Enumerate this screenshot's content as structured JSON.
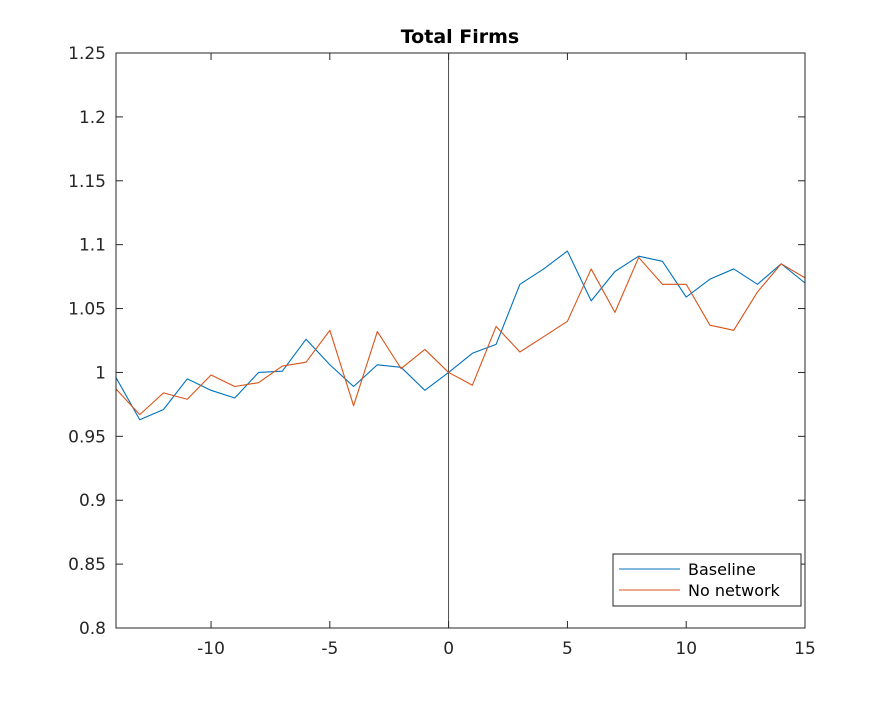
{
  "chart_data": {
    "type": "line",
    "title": "Total Firms",
    "xlabel": "",
    "ylabel": "",
    "xlim": [
      -14,
      15
    ],
    "ylim": [
      0.8,
      1.25
    ],
    "xticks": [
      -10,
      -5,
      0,
      5,
      10,
      15
    ],
    "xtick_labels": [
      "-10",
      "-5",
      "0",
      "5",
      "10",
      "15"
    ],
    "yticks": [
      0.8,
      0.85,
      0.9,
      0.95,
      1,
      1.05,
      1.1,
      1.15,
      1.2,
      1.25
    ],
    "ytick_labels": [
      "0.8",
      "0.85",
      "0.9",
      "0.95",
      "1",
      "1.05",
      "1.1",
      "1.15",
      "1.2",
      "1.25"
    ],
    "grid": false,
    "legend_position": "bottom-right",
    "reference_line_x": 0,
    "x": [
      -14,
      -13,
      -12,
      -11,
      -10,
      -9,
      -8,
      -7,
      -6,
      -5,
      -4,
      -3,
      -2,
      -1,
      0,
      1,
      2,
      3,
      4,
      5,
      6,
      7,
      8,
      9,
      10,
      11,
      12,
      13,
      14,
      15
    ],
    "series": [
      {
        "name": "Baseline",
        "color": "#0072BD",
        "values": [
          0.996,
          0.963,
          0.971,
          0.995,
          0.986,
          0.98,
          1.0,
          1.001,
          1.026,
          1.006,
          0.989,
          1.006,
          1.004,
          0.986,
          1.0,
          1.015,
          1.022,
          1.069,
          1.081,
          1.095,
          1.056,
          1.079,
          1.091,
          1.087,
          1.059,
          1.073,
          1.081,
          1.069,
          1.085,
          1.07
        ]
      },
      {
        "name": "No network",
        "color": "#D95319",
        "values": [
          0.987,
          0.967,
          0.984,
          0.979,
          0.998,
          0.989,
          0.992,
          1.005,
          1.008,
          1.033,
          0.974,
          1.032,
          1.003,
          1.018,
          1.0,
          0.99,
          1.036,
          1.016,
          1.028,
          1.04,
          1.081,
          1.047,
          1.09,
          1.069,
          1.069,
          1.037,
          1.033,
          1.063,
          1.085,
          1.074
        ]
      }
    ]
  }
}
